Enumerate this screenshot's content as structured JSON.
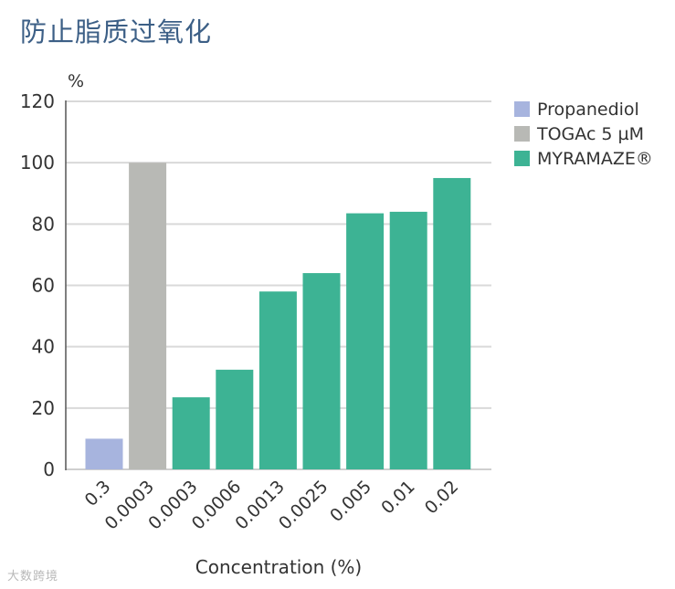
{
  "title": "防止脂质过氧化",
  "watermark": "大数跨境",
  "colors": {
    "title": "#3c5f86",
    "propanediol": "#a7b4de",
    "togac": "#b8b9b5",
    "myramaze": "#3db394",
    "grid": "#d9d9d9",
    "text": "#333333"
  },
  "chart_data": {
    "type": "bar",
    "title": "防止脂质过氧化",
    "ylabel": "%",
    "xlabel": "Concentration (%)",
    "ylim": [
      0,
      120
    ],
    "yticks": [
      0,
      20,
      40,
      60,
      80,
      100,
      120
    ],
    "grid": true,
    "legend_position": "top-right",
    "legend": [
      {
        "name": "Propanediol",
        "color": "#a7b4de"
      },
      {
        "name": "TOGAc 5 µM",
        "color": "#b8b9b5"
      },
      {
        "name": "MYRAMAZE®",
        "color": "#3db394"
      }
    ],
    "bars": [
      {
        "category": "0.3",
        "value": 10,
        "series": "Propanediol",
        "color": "#a7b4de"
      },
      {
        "category": "0.0003",
        "value": 100,
        "series": "TOGAc 5 µM",
        "color": "#b8b9b5"
      },
      {
        "category": "0.0003",
        "value": 23.5,
        "series": "MYRAMAZE®",
        "color": "#3db394"
      },
      {
        "category": "0.0006",
        "value": 32.5,
        "series": "MYRAMAZE®",
        "color": "#3db394"
      },
      {
        "category": "0.0013",
        "value": 58,
        "series": "MYRAMAZE®",
        "color": "#3db394"
      },
      {
        "category": "0.0025",
        "value": 64,
        "series": "MYRAMAZE®",
        "color": "#3db394"
      },
      {
        "category": "0.005",
        "value": 83.5,
        "series": "MYRAMAZE®",
        "color": "#3db394"
      },
      {
        "category": "0.01",
        "value": 84,
        "series": "MYRAMAZE®",
        "color": "#3db394"
      },
      {
        "category": "0.02",
        "value": 95,
        "series": "MYRAMAZE®",
        "color": "#3db394"
      }
    ]
  }
}
